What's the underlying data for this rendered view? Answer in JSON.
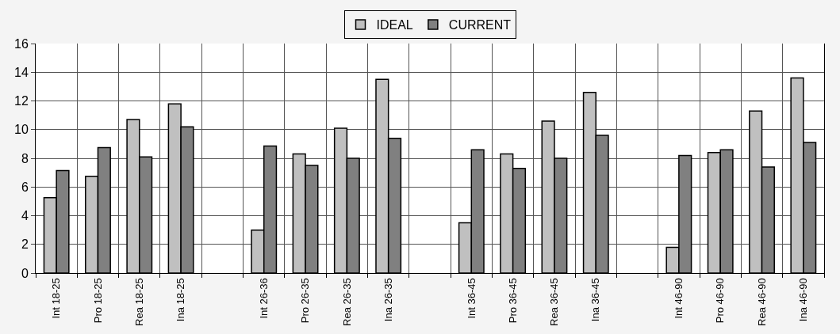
{
  "chart_data": {
    "type": "bar",
    "categories": [
      "Int 18-25",
      "Pro 18-25",
      "Rea 18-25",
      "Ina 18-25",
      null,
      "Int 26-36",
      "Pro 26-35",
      "Rea 26-35",
      "Ina 26-35",
      null,
      "Int 36-45",
      "Pro 36-45",
      "Rea 36-45",
      "Ina 36-45",
      null,
      "Int 46-90",
      "Pro 46-90",
      "Rea 46-90",
      "Ina 46-90"
    ],
    "series": [
      {
        "name": "IDEAL",
        "color": "#c0c0c0",
        "values": [
          5.25,
          6.75,
          10.7,
          11.8,
          null,
          3.0,
          8.3,
          10.1,
          13.5,
          null,
          3.5,
          8.3,
          10.6,
          12.6,
          null,
          1.8,
          8.4,
          11.3,
          13.6
        ]
      },
      {
        "name": "CURRENT",
        "color": "#808080",
        "values": [
          7.15,
          8.75,
          8.1,
          10.2,
          null,
          8.85,
          7.5,
          8.0,
          9.4,
          null,
          8.6,
          7.3,
          8.0,
          9.6,
          null,
          8.2,
          8.6,
          7.4,
          9.1
        ]
      }
    ],
    "ylim": [
      0,
      16
    ],
    "yticks": [
      0,
      2,
      4,
      6,
      8,
      10,
      12,
      14,
      16
    ],
    "grid": true,
    "legend": "top"
  }
}
